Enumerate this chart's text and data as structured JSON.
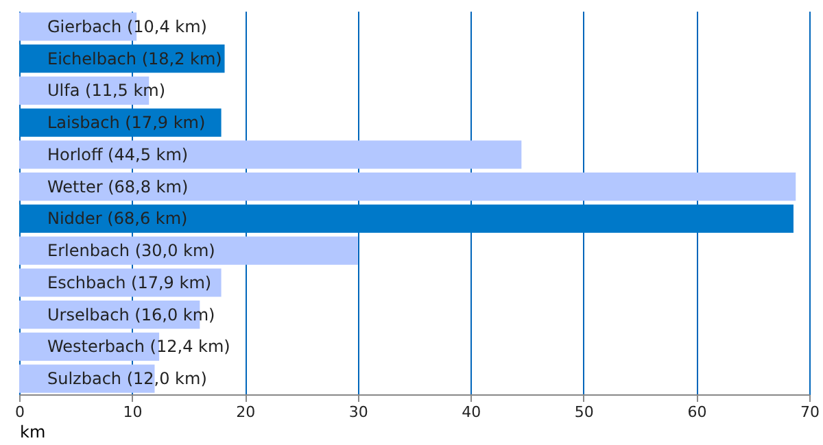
{
  "chart_data": {
    "type": "bar",
    "orientation": "horizontal",
    "xlabel": "km",
    "categories": [
      "Gierbach (10,4 km)",
      "Eichelbach (18,2 km)",
      "Ulfa (11,5 km)",
      "Laisbach (17,9 km)",
      "Horloff (44,5 km)",
      "Wetter (68,8 km)",
      "Nidder (68,6 km)",
      "Erlenbach (30,0 km)",
      "Eschbach (17,9 km)",
      "Urselbach (16,0 km)",
      "Westerbach (12,4 km)",
      "Sulzbach (12,0 km)"
    ],
    "values": [
      10.4,
      18.2,
      11.5,
      17.9,
      44.5,
      68.8,
      68.6,
      30.0,
      17.9,
      16.0,
      12.4,
      12.0
    ],
    "colors": [
      "#b3c7ff",
      "#0079c9",
      "#b3c7ff",
      "#0079c9",
      "#b3c7ff",
      "#b3c7ff",
      "#0079c9",
      "#b3c7ff",
      "#b3c7ff",
      "#b3c7ff",
      "#b3c7ff",
      "#b3c7ff"
    ],
    "xlim": [
      0,
      70
    ],
    "xticks": [
      0,
      10,
      20,
      30,
      40,
      50,
      60,
      70
    ],
    "grid": "x"
  }
}
